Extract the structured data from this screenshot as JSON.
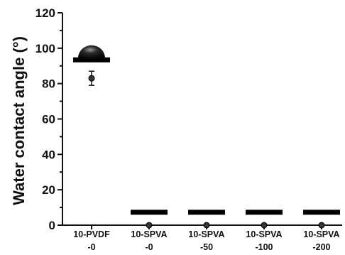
{
  "chart_data": {
    "type": "scatter",
    "title": "",
    "xlabel": "",
    "ylabel": "Water contact angle (°)",
    "ylim": [
      0,
      120
    ],
    "y_ticks": [
      0,
      20,
      40,
      60,
      80,
      100,
      120
    ],
    "categories": [
      {
        "line1": "10-PVDF",
        "line2": "-0"
      },
      {
        "line1": "10-SPVA",
        "line2": "-0"
      },
      {
        "line1": "10-SPVA",
        "line2": "-50"
      },
      {
        "line1": "10-SPVA",
        "line2": "-100"
      },
      {
        "line1": "10-SPVA",
        "line2": "-200"
      }
    ],
    "values": [
      83,
      0,
      0,
      0,
      0
    ],
    "errors": [
      4,
      0,
      0,
      0,
      0
    ],
    "droplet_icons": [
      "sessile-drop-icon",
      "flat-film-icon",
      "flat-film-icon",
      "flat-film-icon",
      "flat-film-icon"
    ],
    "grid": false,
    "legend": "none"
  }
}
